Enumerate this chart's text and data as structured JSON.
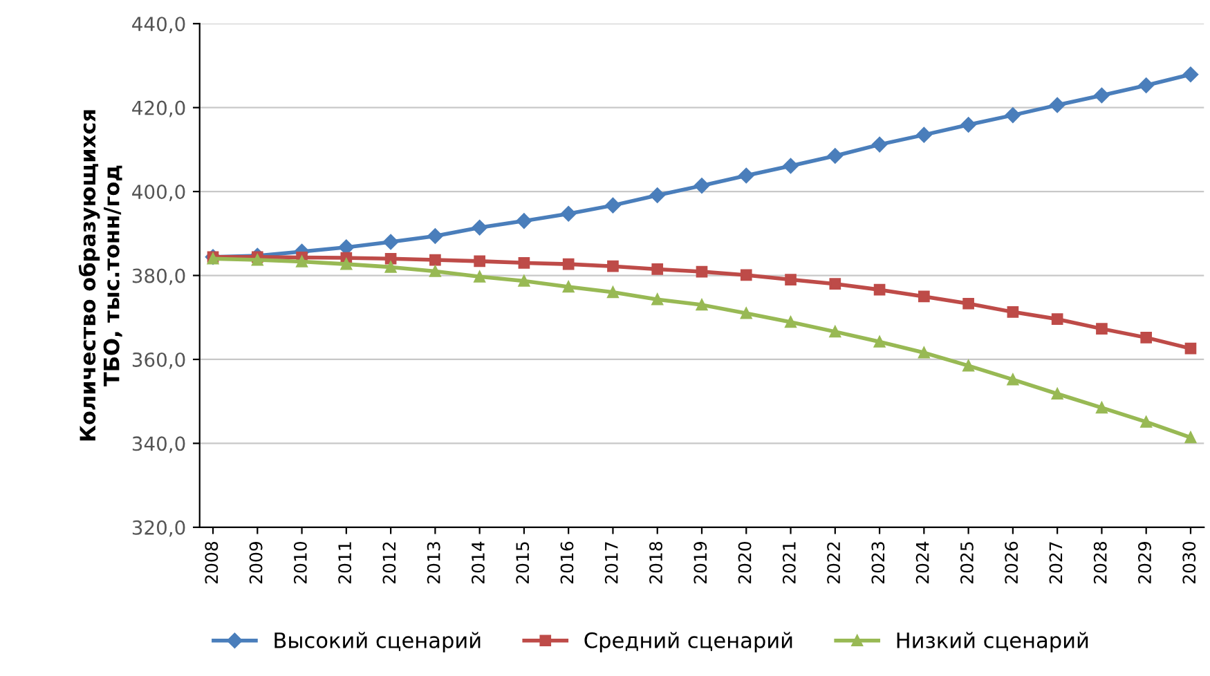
{
  "chart_data": {
    "type": "line",
    "ylabel": "Количество образующихся\nТБО, тыс.тонн/год",
    "categories": [
      "2008",
      "2009",
      "2010",
      "2011",
      "2012",
      "2013",
      "2014",
      "2015",
      "2016",
      "2017",
      "2018",
      "2019",
      "2020",
      "2021",
      "2022",
      "2023",
      "2024",
      "2025",
      "2026",
      "2027",
      "2028",
      "2029",
      "2030"
    ],
    "series": [
      {
        "name": "Высокий сценарий",
        "color": "#4a7ebb",
        "marker": "diamond",
        "values": [
          384.4,
          384.7,
          385.7,
          386.7,
          388.0,
          389.4,
          391.4,
          393.0,
          394.7,
          396.7,
          399.1,
          401.4,
          403.8,
          406.1,
          408.5,
          411.2,
          413.5,
          415.9,
          418.2,
          420.6,
          422.9,
          425.3,
          427.9
        ]
      },
      {
        "name": "Средний сценарий",
        "color": "#be4b48",
        "marker": "square",
        "values": [
          384.4,
          384.4,
          384.3,
          384.2,
          384.0,
          383.7,
          383.4,
          383.0,
          382.7,
          382.2,
          381.5,
          380.9,
          380.1,
          379.0,
          378.0,
          376.6,
          375.0,
          373.3,
          371.3,
          369.6,
          367.3,
          365.2,
          362.6
        ]
      },
      {
        "name": "Низкий сценарий",
        "color": "#98b954",
        "marker": "triangle",
        "values": [
          384.0,
          383.7,
          383.3,
          382.7,
          382.0,
          381.0,
          379.7,
          378.7,
          377.3,
          376.0,
          374.3,
          373.0,
          371.0,
          368.9,
          366.6,
          364.2,
          361.6,
          358.5,
          355.2,
          351.8,
          348.5,
          345.1,
          341.4
        ]
      }
    ],
    "ylim": [
      320,
      440
    ],
    "yticks": [
      {
        "value": 320,
        "label": "320,0"
      },
      {
        "value": 340,
        "label": "340,0"
      },
      {
        "value": 360,
        "label": "360,0"
      },
      {
        "value": 380,
        "label": "380,0"
      },
      {
        "value": 400,
        "label": "400,0"
      },
      {
        "value": 420,
        "label": "420,0"
      },
      {
        "value": 440,
        "label": "440,0"
      }
    ],
    "grid": "y",
    "legend": "bottom",
    "line_style": "solid"
  }
}
